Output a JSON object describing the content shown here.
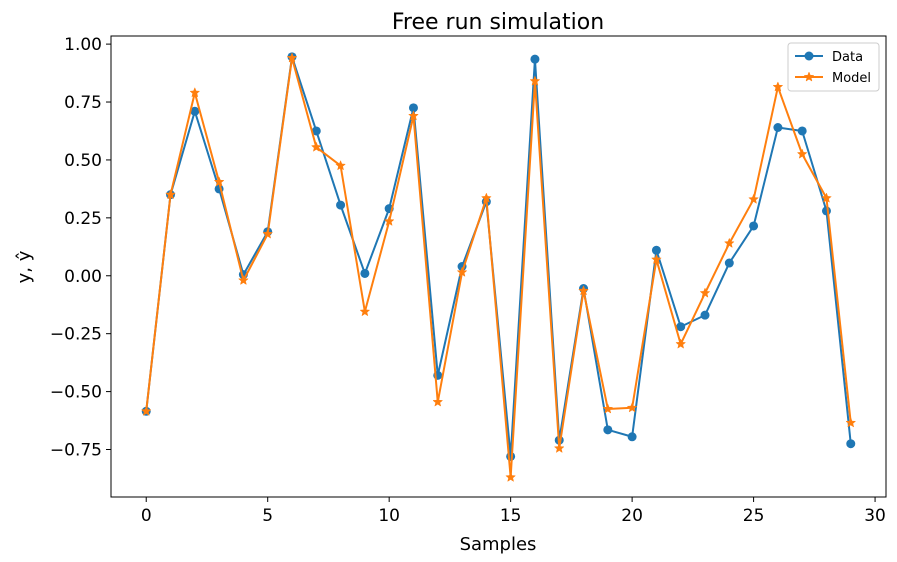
{
  "chart_data": {
    "type": "line",
    "title": "Free run simulation",
    "xlabel": "Samples",
    "ylabel": "y, ŷ",
    "xlim": [
      -1.45,
      30.45
    ],
    "ylim": [
      -0.955,
      1.035
    ],
    "xticks": [
      0,
      5,
      10,
      15,
      20,
      25,
      30
    ],
    "yticks": [
      -0.75,
      -0.5,
      -0.25,
      0.0,
      0.25,
      0.5,
      0.75,
      1.0
    ],
    "ytick_labels": [
      "−0.75",
      "−0.50",
      "−0.25",
      "0.00",
      "0.25",
      "0.50",
      "0.75",
      "1.00"
    ],
    "grid": false,
    "legend": "top-right",
    "x": [
      0,
      1,
      2,
      3,
      4,
      5,
      6,
      7,
      8,
      9,
      10,
      11,
      12,
      13,
      14,
      15,
      16,
      17,
      18,
      19,
      20,
      21,
      22,
      23,
      24,
      25,
      26,
      27,
      28,
      29
    ],
    "series": [
      {
        "name": "Data",
        "color": "#1f77b4",
        "marker": "circle",
        "values": [
          -0.585,
          0.35,
          0.71,
          0.375,
          0.005,
          0.19,
          0.945,
          0.625,
          0.305,
          0.01,
          0.29,
          0.725,
          -0.43,
          0.04,
          0.32,
          -0.78,
          0.935,
          -0.71,
          -0.055,
          -0.665,
          -0.695,
          0.11,
          -0.22,
          -0.17,
          0.055,
          0.215,
          0.64,
          0.625,
          0.28,
          -0.725
        ]
      },
      {
        "name": "Model",
        "color": "#ff7f0e",
        "marker": "star",
        "values": [
          -0.585,
          0.35,
          0.79,
          0.405,
          -0.02,
          0.18,
          0.94,
          0.555,
          0.475,
          -0.155,
          0.235,
          0.69,
          -0.545,
          0.015,
          0.335,
          -0.87,
          0.84,
          -0.745,
          -0.065,
          -0.575,
          -0.57,
          0.07,
          -0.295,
          -0.075,
          0.14,
          0.33,
          0.815,
          0.525,
          0.335,
          -0.635
        ]
      }
    ]
  }
}
